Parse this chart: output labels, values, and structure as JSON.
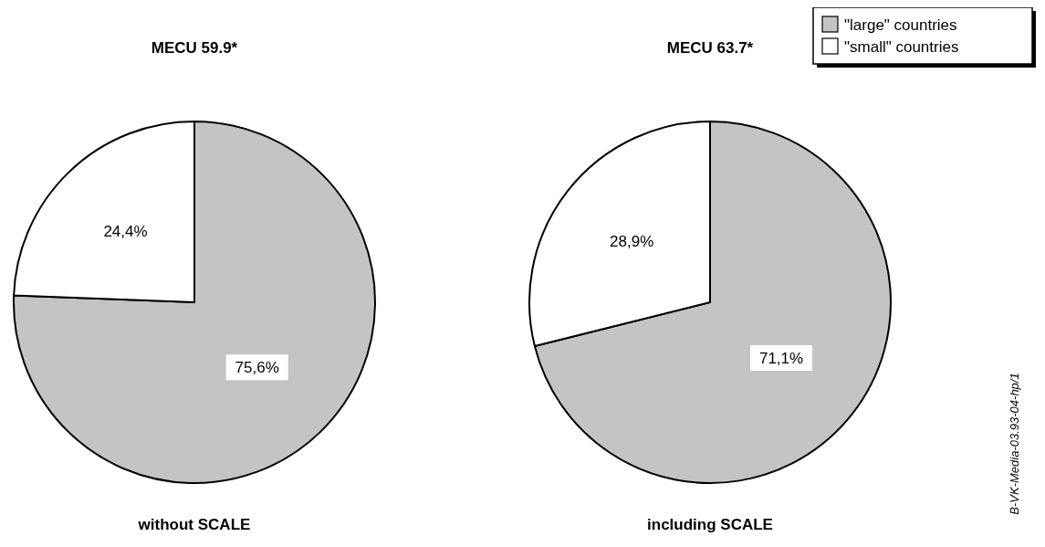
{
  "chart_data": [
    {
      "type": "pie",
      "title": "MECU 59.9*",
      "xlabel": "without SCALE",
      "categories": [
        null,
        null
      ],
      "values": [
        75.6,
        24.4
      ],
      "colors": [
        "#c4c4c4",
        "#ffffff"
      ],
      "value_labels": [
        "75,6%",
        "24,4%"
      ]
    },
    {
      "type": "pie",
      "title": "MECU 63.7*",
      "xlabel": "including SCALE",
      "categories": [
        "\"large\" countries",
        "\"small\" countries"
      ],
      "values": [
        71.1,
        28.9
      ],
      "colors": [
        "#c4c4c4",
        "#ffffff"
      ],
      "value_labels": [
        "71,1%",
        "28,9%"
      ],
      "legend": "top right",
      "annotations": [
        "B-VK-Media-03.93-04-hp/1"
      ]
    }
  ]
}
